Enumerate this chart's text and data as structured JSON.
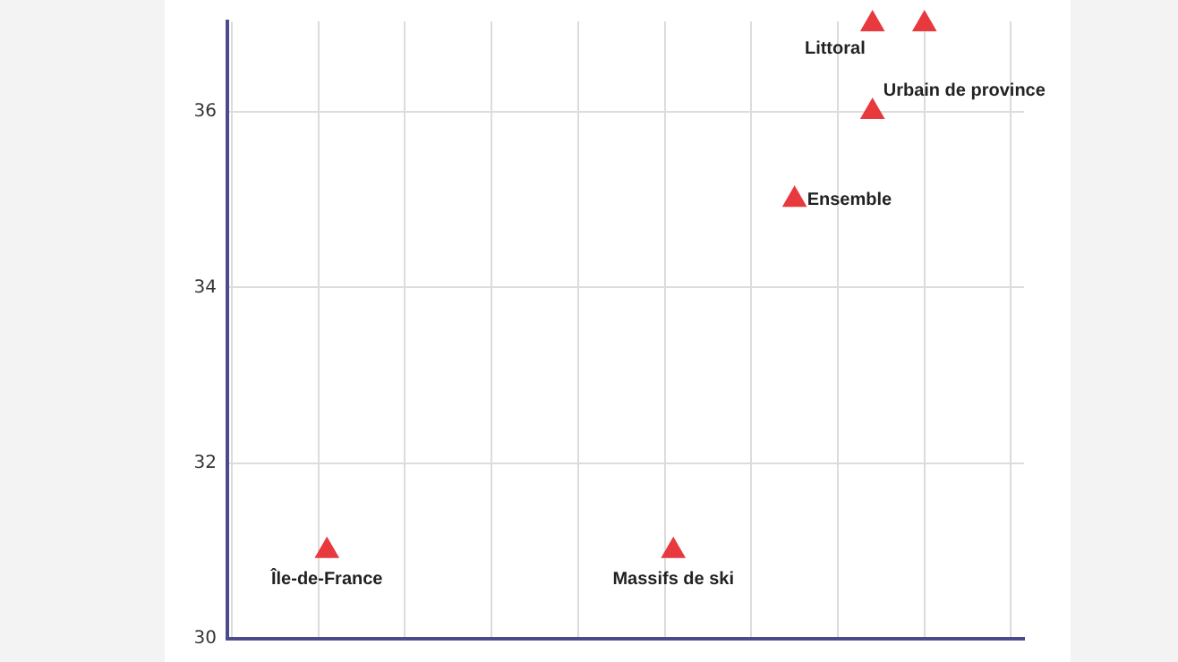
{
  "chart_data": {
    "type": "scatter",
    "marker": "triangle",
    "grid": true,
    "tick_labels": "y",
    "categories": [
      null,
      null,
      null,
      null,
      null,
      null,
      null,
      null,
      null,
      null,
      null,
      null,
      null,
      null,
      null,
      null,
      null,
      null,
      null,
      null,
      null,
      null,
      null,
      null,
      null,
      null,
      null,
      null,
      null,
      null,
      null,
      null,
      null,
      null,
      null,
      null,
      null,
      null,
      null,
      null,
      null,
      null,
      null,
      null,
      null,
      null,
      null,
      null,
      null,
      null,
      null,
      null,
      null,
      null,
      null,
      null,
      null,
      null,
      null,
      null,
      null,
      null,
      null,
      null,
      null,
      null,
      null,
      null,
      null,
      null,
      null,
      null,
      null,
      null,
      null,
      null,
      null,
      null,
      null,
      null,
      null,
      null,
      null,
      null,
      null,
      null,
      null,
      null,
      null,
      null,
      null,
      null
    ],
    "series": [
      {
        "name": "Île-de-France",
        "color": "#e8393f",
        "values": [
          null,
          null,
          null,
          null,
          null,
          null,
          null,
          null,
          null,
          null,
          null,
          31,
          null,
          null,
          null,
          null,
          null,
          null,
          null,
          null,
          null,
          null,
          null,
          null,
          null,
          null,
          null,
          null,
          null,
          null,
          null,
          null,
          null,
          null,
          null,
          null,
          null,
          null,
          null,
          null,
          null,
          null,
          null,
          null,
          null,
          null,
          null,
          null,
          null,
          null,
          null,
          null,
          null,
          null,
          null,
          null,
          null,
          null,
          null,
          null,
          null,
          null,
          null,
          null,
          null,
          null,
          null,
          null,
          null,
          null,
          null,
          null,
          null,
          null,
          null,
          null,
          null,
          null,
          null,
          null,
          null,
          null,
          null,
          null,
          null,
          null,
          null,
          null,
          null,
          null,
          null,
          null
        ]
      },
      {
        "name": "Massifs de ski",
        "color": "#e8393f",
        "values": [
          null,
          null,
          null,
          null,
          null,
          null,
          null,
          null,
          null,
          null,
          null,
          null,
          null,
          null,
          null,
          null,
          null,
          null,
          null,
          null,
          null,
          null,
          null,
          null,
          null,
          null,
          null,
          null,
          null,
          null,
          null,
          null,
          null,
          null,
          null,
          null,
          null,
          null,
          null,
          null,
          null,
          null,
          null,
          null,
          null,
          null,
          null,
          null,
          null,
          null,
          null,
          31,
          null,
          null,
          null,
          null,
          null,
          null,
          null,
          null,
          null,
          null,
          null,
          null,
          null,
          null,
          null,
          null,
          null,
          null,
          null,
          null,
          null,
          null,
          null,
          null,
          null,
          null,
          null,
          null,
          null,
          null,
          null,
          null,
          null,
          null,
          null,
          null,
          null,
          null,
          null,
          null
        ]
      },
      {
        "name": "Ensemble",
        "color": "#e8393f",
        "values": [
          null,
          null,
          null,
          null,
          null,
          null,
          null,
          null,
          null,
          null,
          null,
          null,
          null,
          null,
          null,
          null,
          null,
          null,
          null,
          null,
          null,
          null,
          null,
          null,
          null,
          null,
          null,
          null,
          null,
          null,
          null,
          null,
          null,
          null,
          null,
          null,
          null,
          null,
          null,
          null,
          null,
          null,
          null,
          null,
          null,
          null,
          null,
          null,
          null,
          null,
          null,
          null,
          null,
          null,
          null,
          null,
          null,
          null,
          null,
          null,
          null,
          null,
          null,
          null,
          null,
          35,
          null,
          null,
          null,
          null,
          null,
          null,
          null,
          null,
          null,
          null,
          null,
          null,
          null,
          null,
          null,
          null,
          null,
          null,
          null,
          null,
          null,
          null,
          null,
          null,
          null,
          null
        ]
      },
      {
        "name": "Urbain de province",
        "color": "#e8393f",
        "values": [
          null,
          null,
          null,
          null,
          null,
          null,
          null,
          null,
          null,
          null,
          null,
          null,
          null,
          null,
          null,
          null,
          null,
          null,
          null,
          null,
          null,
          null,
          null,
          null,
          null,
          null,
          null,
          null,
          null,
          null,
          null,
          null,
          null,
          null,
          null,
          null,
          null,
          null,
          null,
          null,
          null,
          null,
          null,
          null,
          null,
          null,
          null,
          null,
          null,
          null,
          null,
          null,
          null,
          null,
          null,
          null,
          null,
          null,
          null,
          null,
          null,
          null,
          null,
          null,
          null,
          null,
          null,
          null,
          null,
          null,
          null,
          null,
          null,
          null,
          36,
          null,
          null,
          null,
          null,
          null,
          null,
          null,
          null,
          null,
          null,
          null,
          null,
          null,
          null,
          null,
          null,
          null
        ]
      },
      {
        "name": "Littoral",
        "color": "#e8393f",
        "values": [
          null,
          null,
          null,
          null,
          null,
          null,
          null,
          null,
          null,
          null,
          null,
          null,
          null,
          null,
          null,
          null,
          null,
          null,
          null,
          null,
          null,
          null,
          null,
          null,
          null,
          null,
          null,
          null,
          null,
          null,
          null,
          null,
          null,
          null,
          null,
          null,
          null,
          null,
          null,
          null,
          null,
          null,
          null,
          null,
          null,
          null,
          null,
          null,
          null,
          null,
          null,
          null,
          null,
          null,
          null,
          null,
          null,
          null,
          null,
          null,
          null,
          null,
          null,
          null,
          null,
          null,
          null,
          null,
          null,
          null,
          null,
          null,
          null,
          null,
          37,
          null,
          null,
          null,
          null,
          null,
          null,
          null,
          null,
          null,
          null,
          null,
          null,
          null,
          null,
          null,
          null,
          null
        ]
      },
      {
        "color": "#e8393f",
        "values": [
          null,
          null,
          null,
          null,
          null,
          null,
          null,
          null,
          null,
          null,
          null,
          null,
          null,
          null,
          null,
          null,
          null,
          null,
          null,
          null,
          null,
          null,
          null,
          null,
          null,
          null,
          null,
          null,
          null,
          null,
          null,
          null,
          null,
          null,
          null,
          null,
          null,
          null,
          null,
          null,
          null,
          null,
          null,
          null,
          null,
          null,
          null,
          null,
          null,
          null,
          null,
          null,
          null,
          null,
          null,
          null,
          null,
          null,
          null,
          null,
          null,
          null,
          null,
          null,
          null,
          null,
          null,
          null,
          null,
          null,
          null,
          null,
          null,
          null,
          null,
          null,
          null,
          null,
          null,
          null,
          37,
          null,
          null,
          null,
          null,
          null,
          null,
          null,
          null,
          null,
          null,
          null
        ]
      }
    ],
    "ylim": [
      30,
      37.03
    ],
    "yticks": [
      30,
      32,
      34,
      36
    ]
  }
}
